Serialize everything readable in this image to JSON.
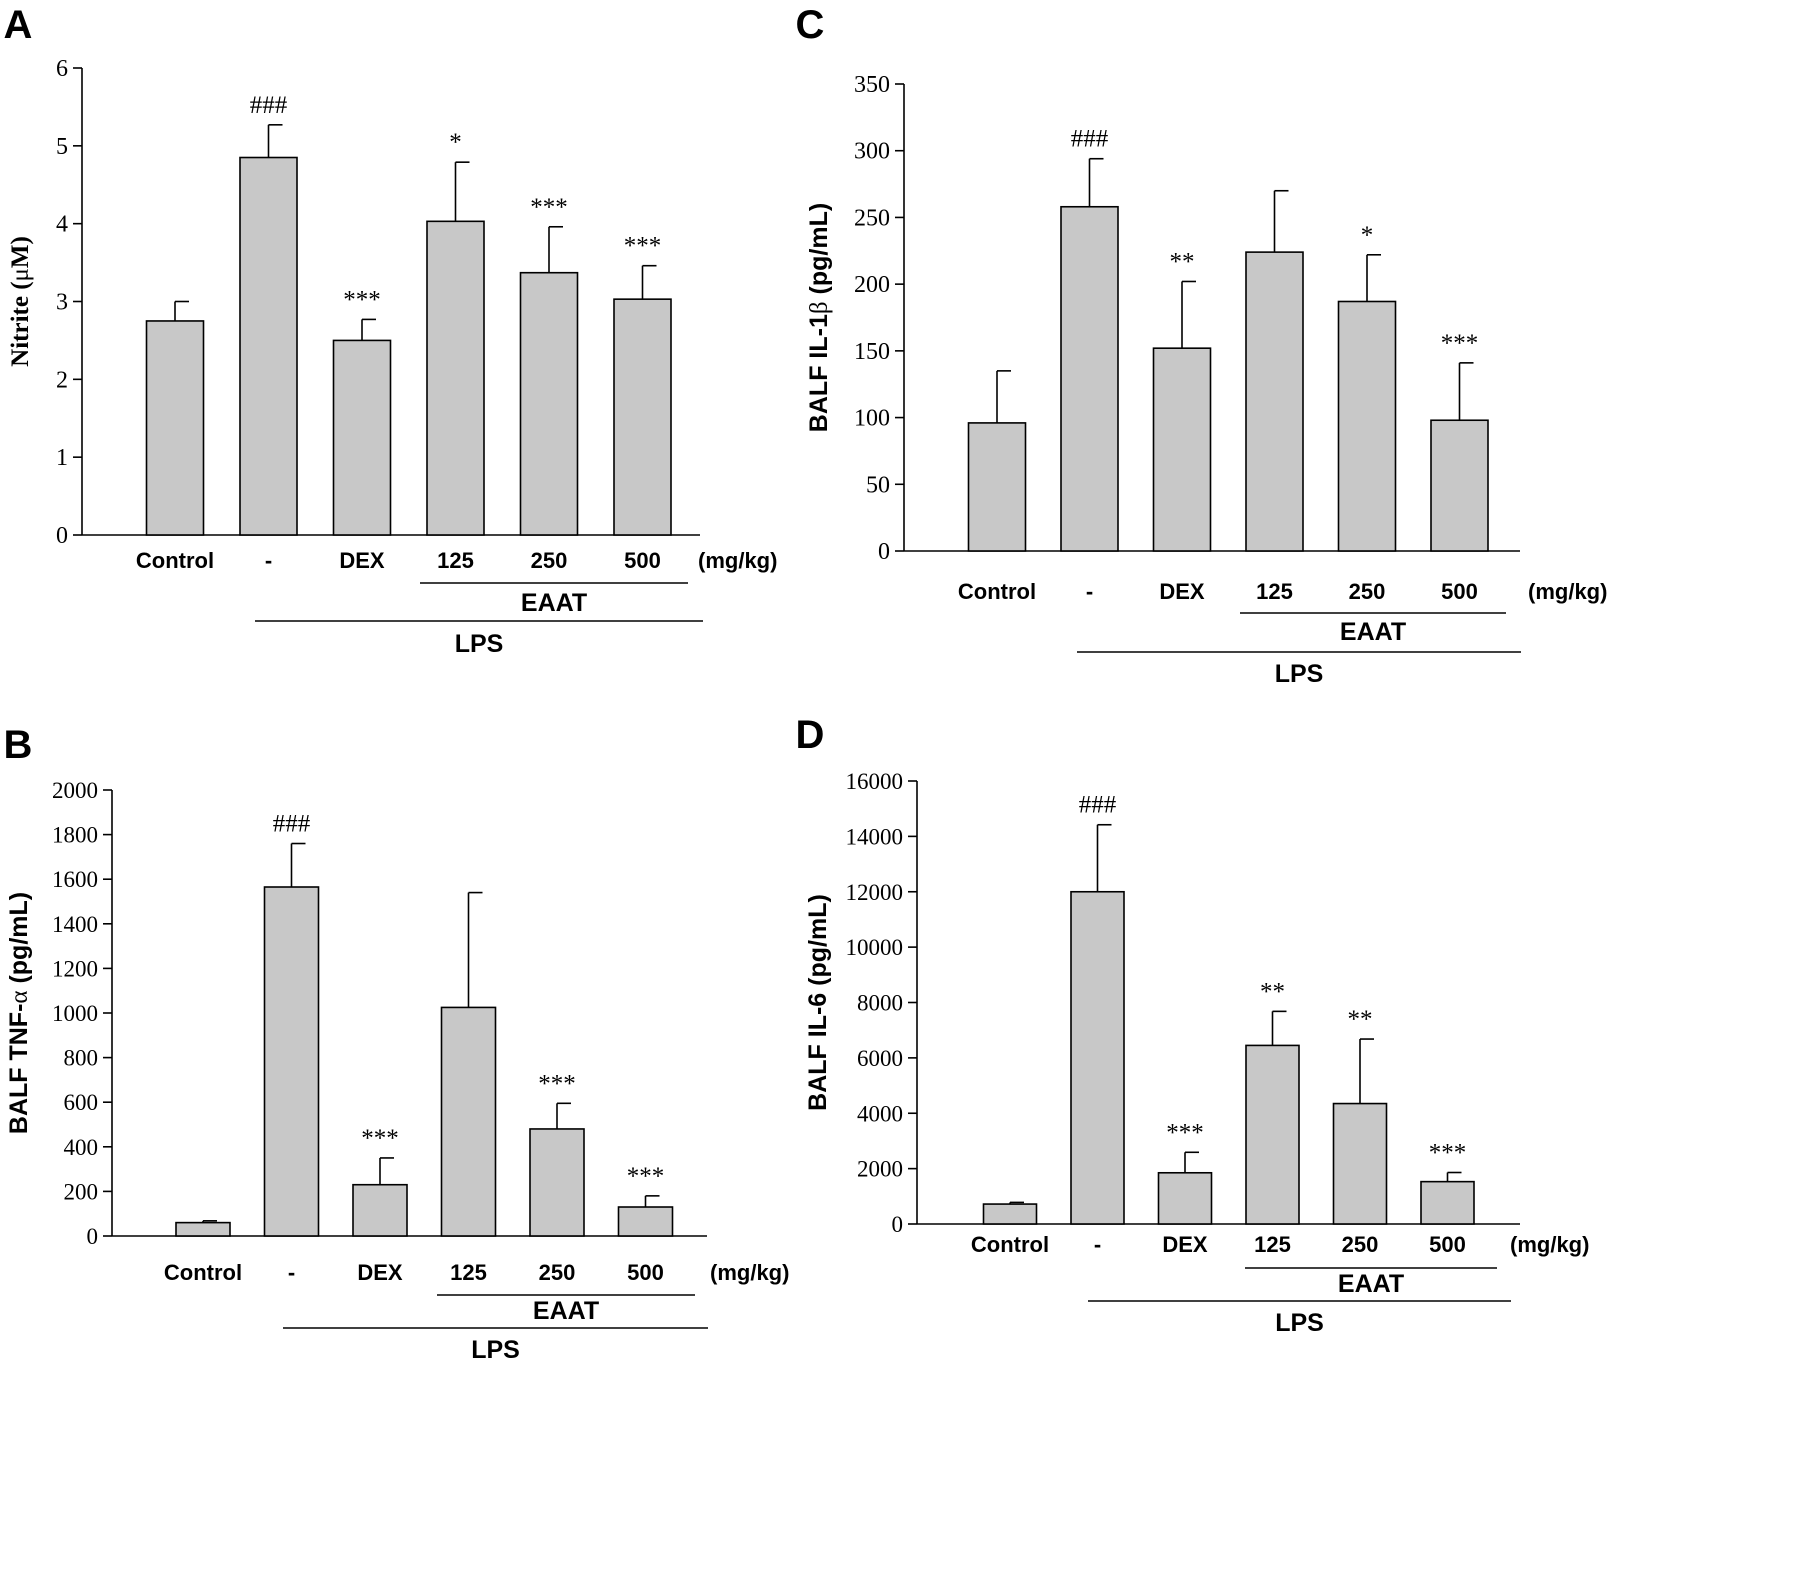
{
  "chart_data": [
    {
      "type": "bar",
      "panel_label": "A",
      "ylabel_main": "Nitrite (",
      "ylabel_symbol": "μ",
      "ylabel_tail": "M)",
      "ylim": [
        0,
        6
      ],
      "yticks": [
        "0",
        "1",
        "2",
        "3",
        "4",
        "5",
        "6"
      ],
      "categories": [
        "Control",
        "-",
        "DEX",
        "125",
        "250",
        "500"
      ],
      "unit_label": "(mg/kg)",
      "values": [
        2.75,
        4.85,
        2.5,
        4.03,
        3.37,
        3.03
      ],
      "errors": [
        0.25,
        0.42,
        0.27,
        0.76,
        0.59,
        0.43
      ],
      "annotations": [
        "",
        "###",
        "***",
        "*",
        "***",
        "***"
      ],
      "group_labels": {
        "eaat": "EAAT",
        "lps": "LPS"
      }
    },
    {
      "type": "bar",
      "panel_label": "C",
      "ylabel_main": "BALF IL-1",
      "ylabel_symbol": "β",
      "ylabel_tail": " (pg/mL)",
      "ylim": [
        0,
        350
      ],
      "yticks": [
        "0",
        "50",
        "100",
        "150",
        "200",
        "250",
        "300",
        "350"
      ],
      "categories": [
        "Control",
        "-",
        "DEX",
        "125",
        "250",
        "500"
      ],
      "unit_label": "(mg/kg)",
      "values": [
        96,
        258,
        152,
        224,
        187,
        98
      ],
      "errors": [
        39,
        36,
        50,
        46,
        35,
        43
      ],
      "annotations": [
        "",
        "###",
        "**",
        "",
        "*",
        "***"
      ],
      "group_labels": {
        "eaat": "EAAT",
        "lps": "LPS"
      }
    },
    {
      "type": "bar",
      "panel_label": "B",
      "ylabel_main": "BALF TNF-",
      "ylabel_symbol": "α",
      "ylabel_tail": " (pg/mL)",
      "ylim": [
        0,
        2000
      ],
      "yticks": [
        "0",
        "200",
        "400",
        "600",
        "800",
        "1000",
        "1200",
        "1400",
        "1600",
        "1800",
        "2000"
      ],
      "categories": [
        "Control",
        "-",
        "DEX",
        "125",
        "250",
        "500"
      ],
      "unit_label": "(mg/kg)",
      "values": [
        60,
        1565,
        230,
        1025,
        480,
        130
      ],
      "errors": [
        8,
        195,
        120,
        515,
        115,
        50
      ],
      "annotations": [
        "",
        "###",
        "***",
        "",
        "***",
        "***"
      ],
      "group_labels": {
        "eaat": "EAAT",
        "lps": "LPS"
      }
    },
    {
      "type": "bar",
      "panel_label": "D",
      "ylabel_main": "BALF IL-6 (pg/mL)",
      "ylabel_symbol": "",
      "ylabel_tail": "",
      "ylim": [
        0,
        16000
      ],
      "yticks": [
        "0",
        "2000",
        "4000",
        "6000",
        "8000",
        "10000",
        "12000",
        "14000",
        "16000"
      ],
      "categories": [
        "Control",
        "-",
        "DEX",
        "125",
        "250",
        "500"
      ],
      "unit_label": "(mg/kg)",
      "values": [
        720,
        12000,
        1850,
        6450,
        4350,
        1530
      ],
      "errors": [
        60,
        2420,
        740,
        1230,
        2330,
        330
      ],
      "annotations": [
        "",
        "###",
        "***",
        "**",
        "**",
        "***"
      ],
      "group_labels": {
        "eaat": "EAAT",
        "lps": "LPS"
      }
    }
  ],
  "style": {
    "bar_fill": "#c8c8c8",
    "bar_stroke": "#000000",
    "axis_color": "#000000"
  }
}
